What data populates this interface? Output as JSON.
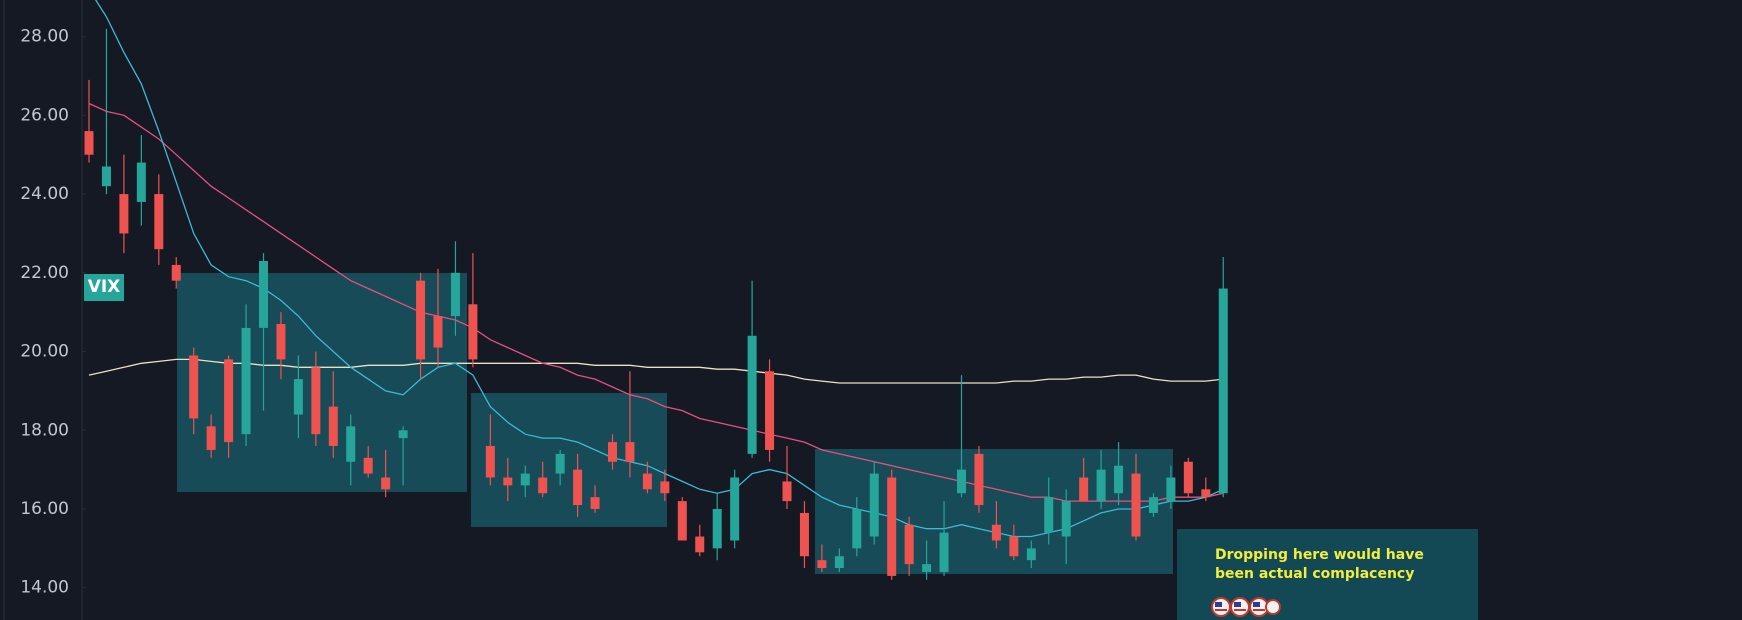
{
  "chart_data": {
    "type": "candlestick",
    "symbol": "VIX",
    "annotation": "Dropping here would have been actual complacency",
    "ylim": [
      13.18,
      28.93
    ],
    "yticks": [
      {
        "value": 14,
        "label": "14.00"
      },
      {
        "value": 16,
        "label": "16.00"
      },
      {
        "value": 18,
        "label": "18.00"
      },
      {
        "value": 20,
        "label": "20.00"
      },
      {
        "value": 22,
        "label": "22.00"
      },
      {
        "value": 24,
        "label": "24.00"
      },
      {
        "value": 26,
        "label": "26.00"
      },
      {
        "value": 28,
        "label": "28.00"
      }
    ],
    "up_color": "#26a69a",
    "down_color": "#ef5350",
    "open": [
      25.6,
      24.2,
      24.0,
      23.8,
      24.0,
      22.2,
      19.9,
      18.1,
      19.8,
      17.9,
      20.6,
      20.7,
      18.4,
      19.6,
      18.6,
      17.2,
      17.3,
      16.8,
      17.8,
      21.8,
      20.9,
      20.9,
      21.2,
      17.6,
      16.8,
      16.6,
      16.8,
      16.9,
      17.0,
      16.3,
      17.7,
      17.7,
      16.9,
      16.7,
      16.2,
      15.3,
      15.0,
      15.2,
      17.4,
      19.5,
      16.7,
      15.9,
      14.7,
      14.5,
      15.0,
      15.3,
      16.8,
      15.6,
      14.4,
      14.4,
      16.4,
      17.4,
      15.6,
      15.3,
      14.7,
      15.4,
      15.3,
      16.8,
      16.2,
      16.4,
      16.9,
      15.9,
      16.2,
      17.2,
      16.5,
      16.4
    ],
    "high": [
      26.9,
      28.2,
      25.0,
      25.5,
      24.5,
      22.4,
      20.1,
      18.4,
      19.9,
      21.2,
      22.5,
      21.0,
      19.9,
      20.0,
      19.5,
      18.4,
      17.6,
      17.5,
      18.1,
      22.0,
      22.1,
      22.8,
      22.5,
      18.4,
      17.3,
      17.1,
      17.2,
      17.5,
      17.4,
      16.6,
      17.9,
      19.5,
      17.2,
      17.0,
      16.3,
      15.6,
      16.4,
      17.0,
      21.8,
      19.8,
      17.6,
      16.2,
      15.1,
      15.0,
      16.3,
      17.2,
      17.0,
      15.8,
      15.2,
      16.2,
      19.4,
      17.6,
      16.2,
      15.6,
      15.2,
      16.8,
      16.5,
      17.3,
      17.5,
      17.7,
      17.4,
      16.4,
      17.1,
      17.3,
      16.8,
      22.4
    ],
    "low": [
      24.8,
      24.0,
      22.5,
      23.2,
      22.2,
      21.6,
      17.9,
      17.3,
      17.3,
      17.6,
      18.5,
      19.3,
      17.8,
      17.6,
      17.3,
      16.6,
      16.8,
      16.3,
      16.6,
      19.3,
      19.6,
      20.4,
      19.6,
      16.6,
      16.2,
      16.3,
      16.3,
      16.6,
      15.8,
      15.9,
      17.0,
      16.8,
      16.4,
      16.2,
      15.2,
      14.8,
      14.7,
      15.0,
      17.3,
      17.2,
      16.0,
      14.5,
      14.4,
      14.4,
      14.8,
      15.1,
      14.2,
      14.3,
      14.2,
      14.3,
      16.3,
      15.9,
      15.0,
      14.7,
      14.5,
      15.1,
      14.6,
      16.2,
      16.0,
      16.1,
      15.2,
      15.8,
      16.0,
      16.3,
      16.2,
      16.3
    ],
    "close": [
      25.0,
      24.7,
      23.0,
      24.8,
      22.6,
      21.8,
      18.3,
      17.5,
      17.7,
      20.6,
      22.3,
      19.8,
      19.3,
      17.9,
      17.6,
      18.1,
      16.9,
      16.5,
      18.0,
      19.8,
      20.1,
      22.0,
      19.8,
      16.8,
      16.6,
      16.9,
      16.4,
      17.4,
      16.1,
      16.0,
      17.2,
      17.2,
      16.5,
      16.4,
      15.2,
      14.9,
      16.0,
      16.8,
      20.4,
      17.5,
      16.2,
      14.8,
      14.5,
      14.8,
      16.0,
      16.9,
      14.3,
      14.6,
      14.6,
      15.4,
      17.0,
      16.1,
      15.2,
      14.8,
      15.0,
      16.3,
      16.2,
      16.2,
      17.0,
      17.1,
      15.3,
      16.3,
      16.8,
      16.4,
      16.3,
      21.6
    ],
    "lines": [
      {
        "color": "#e9e2c2",
        "values": [
          19.4,
          19.5,
          19.6,
          19.7,
          19.75,
          19.8,
          19.8,
          19.75,
          19.7,
          19.7,
          19.65,
          19.65,
          19.6,
          19.6,
          19.6,
          19.6,
          19.65,
          19.65,
          19.65,
          19.7,
          19.7,
          19.7,
          19.7,
          19.7,
          19.7,
          19.7,
          19.7,
          19.7,
          19.7,
          19.65,
          19.65,
          19.65,
          19.6,
          19.6,
          19.6,
          19.6,
          19.55,
          19.55,
          19.5,
          19.45,
          19.4,
          19.3,
          19.25,
          19.2,
          19.2,
          19.2,
          19.2,
          19.2,
          19.2,
          19.2,
          19.2,
          19.2,
          19.2,
          19.25,
          19.25,
          19.3,
          19.3,
          19.35,
          19.35,
          19.4,
          19.4,
          19.3,
          19.25,
          19.25,
          19.25,
          19.3
        ]
      },
      {
        "color": "#e4517f",
        "values": [
          26.3,
          26.1,
          26.0,
          25.7,
          25.4,
          25.0,
          24.6,
          24.2,
          23.9,
          23.6,
          23.3,
          23.0,
          22.7,
          22.4,
          22.1,
          21.8,
          21.6,
          21.4,
          21.2,
          21.0,
          20.9,
          20.8,
          20.6,
          20.3,
          20.1,
          19.9,
          19.7,
          19.6,
          19.4,
          19.3,
          19.1,
          18.9,
          18.8,
          18.6,
          18.5,
          18.3,
          18.2,
          18.1,
          18.0,
          17.9,
          17.8,
          17.7,
          17.5,
          17.4,
          17.3,
          17.2,
          17.1,
          17.0,
          16.9,
          16.8,
          16.7,
          16.6,
          16.5,
          16.4,
          16.3,
          16.3,
          16.2,
          16.2,
          16.2,
          16.2,
          16.2,
          16.2,
          16.3,
          16.3,
          16.3,
          16.4
        ]
      },
      {
        "color": "#3fb9d4",
        "values": [
          29.2,
          28.5,
          27.6,
          26.8,
          25.6,
          24.3,
          23.0,
          22.2,
          21.9,
          21.8,
          21.6,
          21.3,
          20.9,
          20.4,
          20.0,
          19.6,
          19.3,
          19.0,
          18.9,
          19.3,
          19.6,
          19.7,
          19.4,
          18.6,
          18.2,
          17.9,
          17.8,
          17.8,
          17.7,
          17.5,
          17.3,
          17.2,
          17.1,
          16.9,
          16.7,
          16.5,
          16.4,
          16.5,
          16.9,
          17.0,
          16.9,
          16.6,
          16.3,
          16.1,
          16.0,
          15.9,
          15.8,
          15.6,
          15.5,
          15.5,
          15.6,
          15.5,
          15.4,
          15.3,
          15.3,
          15.4,
          15.5,
          15.7,
          15.9,
          16.0,
          16.0,
          16.1,
          16.2,
          16.2,
          16.3,
          16.5
        ]
      }
    ]
  }
}
